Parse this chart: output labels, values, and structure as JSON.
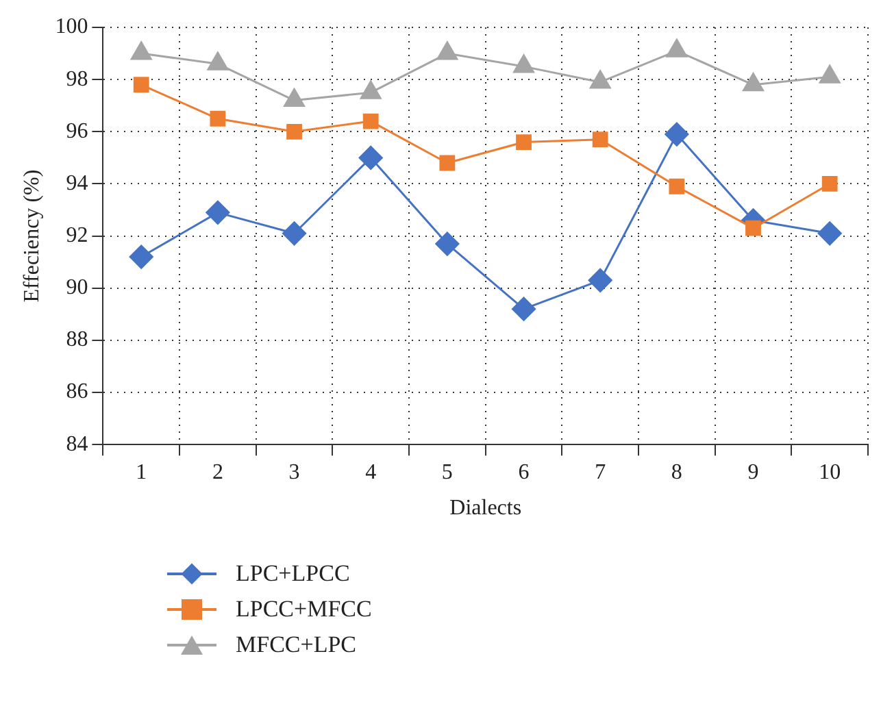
{
  "chart_data": {
    "type": "line",
    "xlabel": "Dialects",
    "ylabel": "Effeciency (%)",
    "categories": [
      "1",
      "2",
      "3",
      "4",
      "5",
      "6",
      "7",
      "8",
      "9",
      "10"
    ],
    "series": [
      {
        "name": "LPC+LPCC",
        "color": "#4472c4",
        "marker": "diamond",
        "values": [
          91.2,
          92.9,
          92.1,
          95.0,
          91.7,
          89.2,
          90.3,
          95.9,
          92.6,
          92.1
        ]
      },
      {
        "name": "LPCC+MFCC",
        "color": "#ed7d31",
        "marker": "square",
        "values": [
          97.8,
          96.5,
          96.0,
          96.4,
          94.8,
          95.6,
          95.7,
          93.9,
          92.3,
          94.0
        ]
      },
      {
        "name": "MFCC+LPC",
        "color": "#a5a5a5",
        "marker": "triangle",
        "values": [
          99.0,
          98.6,
          97.2,
          97.5,
          99.0,
          98.5,
          97.9,
          99.1,
          97.8,
          98.1
        ]
      }
    ],
    "ylim": [
      84,
      100
    ],
    "yticks": [
      84,
      86,
      88,
      90,
      92,
      94,
      96,
      98,
      100
    ],
    "grid": true,
    "legend": "bottom left",
    "line_style": "solid"
  }
}
